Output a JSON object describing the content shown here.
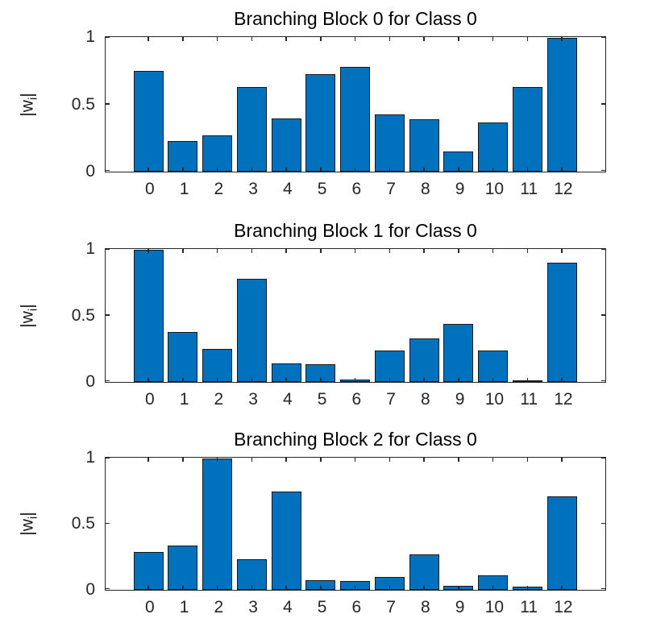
{
  "figure": {
    "background": "#FFFFFF"
  },
  "colors": {
    "bar_fill": "#0072BD",
    "bar_edge": "#1A1A1A",
    "axis": "#262626",
    "tick_label": "#262626",
    "title": "#000000"
  },
  "ylabel_display": {
    "pre": "|w",
    "sub": "i",
    "post": "|"
  },
  "chart_data": [
    {
      "type": "bar",
      "title": "Branching Block 0 for Class 0",
      "xlabel": "",
      "ylabel": "|w_i|",
      "categories": [
        "0",
        "1",
        "2",
        "3",
        "4",
        "5",
        "6",
        "7",
        "8",
        "9",
        "10",
        "11",
        "12"
      ],
      "values": [
        0.75,
        0.23,
        0.27,
        0.63,
        0.4,
        0.73,
        0.78,
        0.43,
        0.39,
        0.15,
        0.37,
        0.63,
        1.0
      ],
      "ylim": [
        0,
        1
      ],
      "yticks": [
        0,
        0.5,
        1
      ],
      "ytick_labels": [
        "0",
        "0.5",
        "1"
      ],
      "grid": false,
      "legend": null
    },
    {
      "type": "bar",
      "title": "Branching Block 1 for Class 0",
      "xlabel": "",
      "ylabel": "|w_i|",
      "categories": [
        "0",
        "1",
        "2",
        "3",
        "4",
        "5",
        "6",
        "7",
        "8",
        "9",
        "10",
        "11",
        "12"
      ],
      "values": [
        1.0,
        0.38,
        0.25,
        0.78,
        0.14,
        0.135,
        0.02,
        0.24,
        0.33,
        0.44,
        0.24,
        0.01,
        0.9
      ],
      "ylim": [
        0,
        1
      ],
      "yticks": [
        0,
        0.5,
        1
      ],
      "ytick_labels": [
        "0",
        "0.5",
        "1"
      ],
      "grid": false,
      "legend": null
    },
    {
      "type": "bar",
      "title": "Branching Block 2 for Class 0",
      "xlabel": "",
      "ylabel": "|w_i|",
      "categories": [
        "0",
        "1",
        "2",
        "3",
        "4",
        "5",
        "6",
        "7",
        "8",
        "9",
        "10",
        "11",
        "12"
      ],
      "values": [
        0.29,
        0.34,
        1.0,
        0.23,
        0.75,
        0.075,
        0.07,
        0.1,
        0.27,
        0.03,
        0.11,
        0.025,
        0.71
      ],
      "ylim": [
        0,
        1
      ],
      "yticks": [
        0,
        0.5,
        1
      ],
      "ytick_labels": [
        "0",
        "0.5",
        "1"
      ],
      "grid": false,
      "legend": null
    }
  ]
}
